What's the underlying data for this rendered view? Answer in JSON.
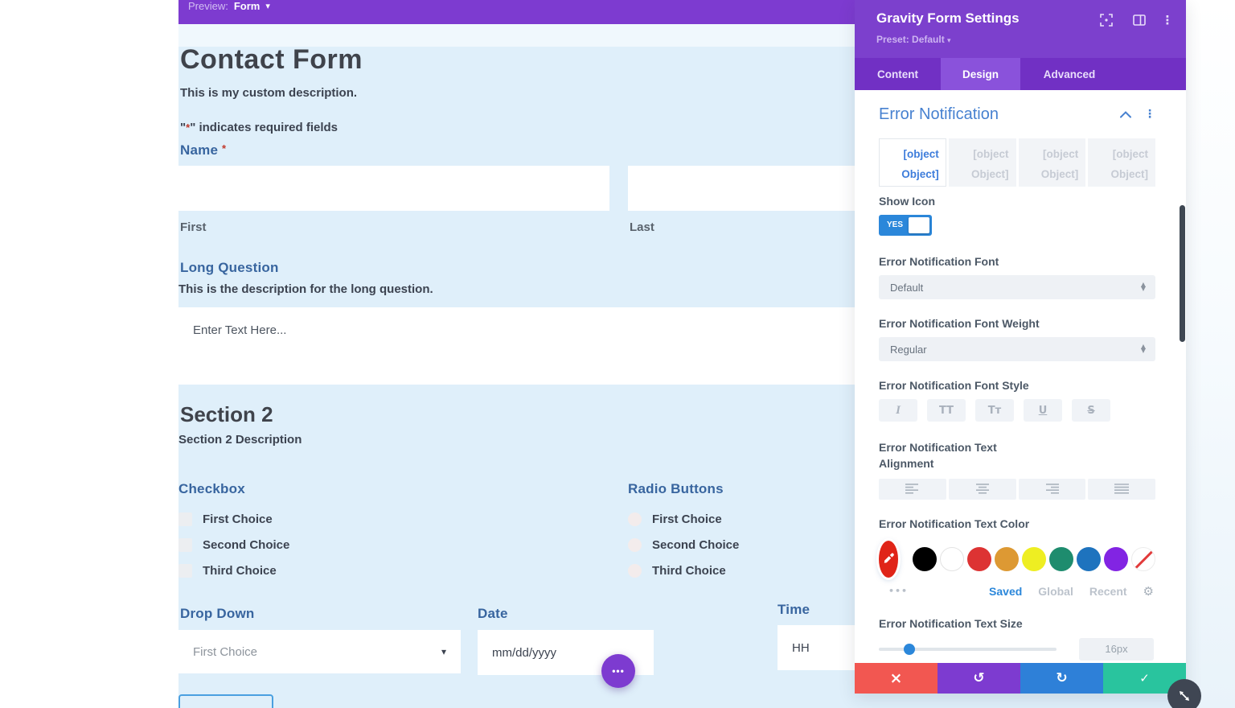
{
  "icons": {
    "caret_down": "▾",
    "dots_v": "⋮",
    "dots_h": "•••",
    "close": "×",
    "undo": "↺",
    "redo": "↻",
    "check": "✓",
    "select_up": "▲",
    "select_down": "▼",
    "gear": "⚙"
  },
  "preview_bar": {
    "label": "Preview:",
    "value": "Form"
  },
  "canvas": {
    "title": "Contact Form",
    "description": "This is my custom description.",
    "required_note": {
      "q1": "\"",
      "star": "*",
      "rest": "\" indicates required fields"
    },
    "name": {
      "label": "Name",
      "star": "*",
      "first": "First",
      "last": "Last"
    },
    "long_question": {
      "label": "Long Question",
      "description": "This is the description for the long question.",
      "placeholder": "Enter Text Here..."
    },
    "section2": {
      "title": "Section 2",
      "description": "Section 2 Description"
    },
    "checkbox": {
      "label": "Checkbox",
      "options": [
        "First Choice",
        "Second Choice",
        "Third Choice"
      ]
    },
    "radio": {
      "label": "Radio Buttons",
      "options": [
        "First Choice",
        "Second Choice",
        "Third Choice"
      ]
    },
    "dropdown": {
      "label": "Drop Down",
      "value": "First Choice"
    },
    "date": {
      "label": "Date",
      "placeholder": "mm/dd/yyyy"
    },
    "time": {
      "label": "Time",
      "placeholder": "HH"
    }
  },
  "panel": {
    "title": "Gravity Form Settings",
    "preset": "Preset: Default",
    "tabs": [
      {
        "label": "Content",
        "active": false
      },
      {
        "label": "Design",
        "active": true
      },
      {
        "label": "Advanced",
        "active": false
      }
    ],
    "section": {
      "title": "Error Notification",
      "subtabs": [
        "[object Object]",
        "[object Object]",
        "[object Object]",
        "[object Object]"
      ],
      "show_icon_label": "Show Icon",
      "toggle_value": "YES",
      "font_label": "Error Notification Font",
      "font_value": "Default",
      "weight_label": "Error Notification Font Weight",
      "weight_value": "Regular",
      "style_label": "Error Notification Font Style",
      "style_buttons": [
        "I",
        "TT",
        "Tᴛ",
        "U",
        "S"
      ],
      "alignment_label": "Error Notification Text Alignment",
      "color_label": "Error Notification Text Color",
      "current_color": "#e02418",
      "swatches": [
        "#000000",
        "#ffffff",
        "#dd3333",
        "#dd9933",
        "#eeee22",
        "#1e8c6e",
        "#1e73be",
        "#8224e3"
      ],
      "color_links": {
        "saved": "Saved",
        "global": "Global",
        "recent": "Recent"
      },
      "size_label": "Error Notification Text Size",
      "size_value": "16px",
      "slider_percent": 17
    }
  },
  "colors": {
    "divi_purple": "#7d3bd0",
    "panel_header_purple": "#7c40cd",
    "tab_row_purple": "#7130c4",
    "active_tab_purple": "#8a52db",
    "accent_blue": "#2b87da",
    "panel_heading_blue": "#4781d0",
    "form_label_blue": "#38659f",
    "canvas_blue": "#dfeffa",
    "footer_red": "#f25751",
    "footer_blue": "#2e80d8",
    "footer_green": "#29c49e",
    "scrollbar_dark": "#3e4752"
  }
}
